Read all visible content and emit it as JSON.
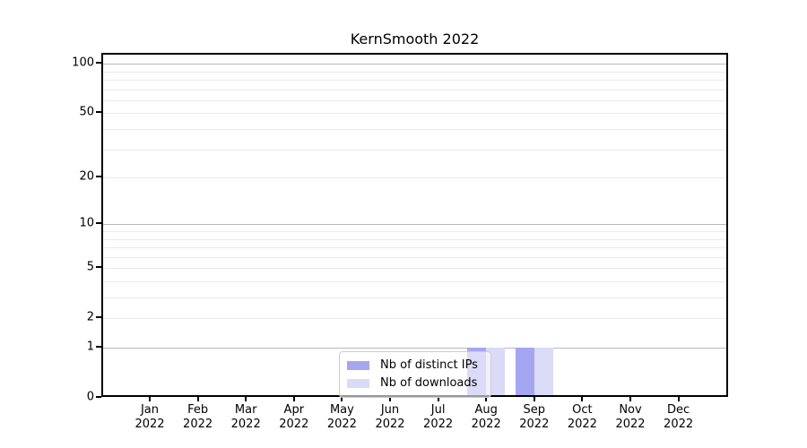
{
  "chart_data": {
    "type": "bar",
    "title": "KernSmooth 2022",
    "categories": [
      "Jan 2022",
      "Feb 2022",
      "Mar 2022",
      "Apr 2022",
      "May 2022",
      "Jun 2022",
      "Jul 2022",
      "Aug 2022",
      "Sep 2022",
      "Oct 2022",
      "Nov 2022",
      "Dec 2022"
    ],
    "series": [
      {
        "name": "Nb of distinct IPs",
        "color": "#a5a6f1",
        "values": [
          0,
          0,
          0,
          0,
          0,
          0,
          0,
          1,
          1,
          0,
          0,
          0
        ]
      },
      {
        "name": "Nb of downloads",
        "color": "#dadbf7",
        "values": [
          0,
          0,
          0,
          0,
          0,
          0,
          0,
          1,
          1,
          0,
          0,
          0
        ]
      }
    ],
    "xlabel": "",
    "ylabel": "",
    "yscale": "log1p",
    "ylim": [
      0,
      115
    ],
    "y_tick_values": [
      0,
      1,
      2,
      5,
      10,
      20,
      50,
      100
    ],
    "y_major_gridlines": [
      1,
      10,
      100
    ],
    "y_minor_gridlines": [
      2,
      3,
      4,
      5,
      6,
      7,
      8,
      9,
      20,
      30,
      40,
      50,
      60,
      70,
      80,
      90
    ],
    "grid": true,
    "legend_position": "bottom-center-inside"
  },
  "colors": {
    "grid_major": "#b8b8b8",
    "grid_minor": "#eaeaea",
    "axis": "#000000",
    "legend_border": "#cccccc",
    "background": "#ffffff"
  }
}
